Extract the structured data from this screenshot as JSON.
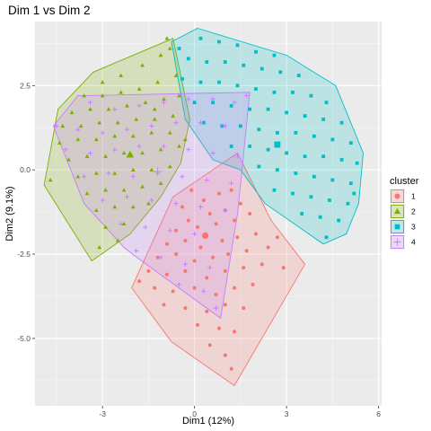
{
  "chart_data": {
    "type": "scatter",
    "title": "Dim 1 vs Dim 2",
    "xlabel": "Dim1 (12%)",
    "ylabel": "Dim2 (9.1%)",
    "xlim": [
      -5.2,
      6.1
    ],
    "ylim": [
      -7.0,
      4.4
    ],
    "xticks": [
      -3,
      0,
      3,
      6
    ],
    "xtick_labels": [
      "-3",
      "0",
      "3",
      "6"
    ],
    "yticks": [
      2.5,
      0,
      -2.5,
      -5
    ],
    "ytick_labels": [
      "2.5",
      "0.0",
      "-2.5",
      "-5.0"
    ],
    "grid": true,
    "legend_title": "cluster",
    "legend_position": "right",
    "series": [
      {
        "name": "1",
        "color": "#F8766D",
        "marker": "circle",
        "centroid": [
          0.35,
          -1.95
        ],
        "hull": [
          [
            -0.7,
            -0.8
          ],
          [
            1.4,
            0.5
          ],
          [
            2.5,
            -1.5
          ],
          [
            3.6,
            -2.8
          ],
          [
            1.3,
            -6.4
          ],
          [
            -0.75,
            -5.1
          ],
          [
            -2.05,
            -3.5
          ]
        ],
        "points": [
          [
            -0.4,
            -1.1
          ],
          [
            0.3,
            -0.9
          ],
          [
            0.8,
            -0.7
          ],
          [
            1.2,
            -0.6
          ],
          [
            -0.2,
            -1.5
          ],
          [
            0.5,
            -1.3
          ],
          [
            1.0,
            -1.2
          ],
          [
            1.5,
            -1.0
          ],
          [
            -0.6,
            -1.8
          ],
          [
            0.1,
            -1.7
          ],
          [
            0.7,
            -1.6
          ],
          [
            1.3,
            -1.5
          ],
          [
            1.8,
            -1.3
          ],
          [
            -0.9,
            -2.2
          ],
          [
            -0.3,
            -2.1
          ],
          [
            0.2,
            -2.3
          ],
          [
            0.9,
            -2.1
          ],
          [
            1.4,
            -2.0
          ],
          [
            2.0,
            -1.9
          ],
          [
            -1.2,
            -2.6
          ],
          [
            -0.6,
            -2.5
          ],
          [
            0.0,
            -2.7
          ],
          [
            0.6,
            -2.6
          ],
          [
            1.1,
            -2.5
          ],
          [
            1.7,
            -2.4
          ],
          [
            2.4,
            -2.3
          ],
          [
            -1.5,
            -3.0
          ],
          [
            -0.9,
            -3.1
          ],
          [
            -0.3,
            -3.0
          ],
          [
            0.4,
            -3.2
          ],
          [
            1.0,
            -3.0
          ],
          [
            1.6,
            -2.9
          ],
          [
            2.2,
            -2.8
          ],
          [
            2.9,
            -2.9
          ],
          [
            -1.3,
            -3.5
          ],
          [
            -0.7,
            -3.6
          ],
          [
            0.0,
            -3.5
          ],
          [
            0.7,
            -3.7
          ],
          [
            1.3,
            -3.5
          ],
          [
            1.9,
            -3.4
          ],
          [
            -1.0,
            -4.0
          ],
          [
            -0.3,
            -4.1
          ],
          [
            0.4,
            -4.2
          ],
          [
            1.0,
            -4.0
          ],
          [
            1.6,
            -4.1
          ],
          [
            0.1,
            -4.6
          ],
          [
            0.8,
            -4.7
          ],
          [
            1.3,
            -4.8
          ],
          [
            0.5,
            -5.2
          ],
          [
            1.0,
            -5.5
          ],
          [
            -1.8,
            -3.3
          ],
          [
            -0.1,
            -0.6
          ],
          [
            2.7,
            -2.0
          ],
          [
            1.2,
            -5.9
          ]
        ]
      },
      {
        "name": "2",
        "color": "#7CAE00",
        "marker": "triangle",
        "centroid": [
          -2.1,
          0.45
        ],
        "hull": [
          [
            -3.3,
            2.9
          ],
          [
            -0.7,
            3.9
          ],
          [
            -0.15,
            1.5
          ],
          [
            -0.45,
            0.2
          ],
          [
            -1.1,
            -0.8
          ],
          [
            -2.1,
            -1.9
          ],
          [
            -3.35,
            -2.7
          ],
          [
            -4.9,
            -0.45
          ],
          [
            -4.45,
            1.8
          ]
        ],
        "points": [
          [
            -3.0,
            2.6
          ],
          [
            -2.4,
            2.8
          ],
          [
            -1.7,
            3.1
          ],
          [
            -1.1,
            3.4
          ],
          [
            -0.8,
            3.6
          ],
          [
            -3.6,
            2.2
          ],
          [
            -3.0,
            2.2
          ],
          [
            -2.4,
            2.3
          ],
          [
            -1.8,
            2.4
          ],
          [
            -1.2,
            2.6
          ],
          [
            -0.6,
            2.8
          ],
          [
            -4.0,
            1.7
          ],
          [
            -3.4,
            1.8
          ],
          [
            -2.8,
            1.8
          ],
          [
            -2.2,
            1.9
          ],
          [
            -1.6,
            2.0
          ],
          [
            -1.0,
            2.1
          ],
          [
            -0.5,
            2.2
          ],
          [
            -4.3,
            1.3
          ],
          [
            -3.7,
            1.3
          ],
          [
            -3.1,
            1.4
          ],
          [
            -2.5,
            1.4
          ],
          [
            -1.9,
            1.5
          ],
          [
            -1.3,
            1.5
          ],
          [
            -0.7,
            1.6
          ],
          [
            -4.4,
            0.8
          ],
          [
            -3.8,
            0.9
          ],
          [
            -3.2,
            0.9
          ],
          [
            -2.6,
            1.0
          ],
          [
            -2.0,
            1.0
          ],
          [
            -1.4,
            1.1
          ],
          [
            -0.8,
            1.1
          ],
          [
            -4.1,
            0.3
          ],
          [
            -3.5,
            0.4
          ],
          [
            -2.9,
            0.4
          ],
          [
            -2.3,
            0.5
          ],
          [
            -1.7,
            0.5
          ],
          [
            -1.1,
            0.6
          ],
          [
            -0.5,
            0.7
          ],
          [
            -3.8,
            -0.2
          ],
          [
            -3.2,
            -0.1
          ],
          [
            -2.6,
            -0.1
          ],
          [
            -2.0,
            0.0
          ],
          [
            -1.4,
            0.0
          ],
          [
            -0.8,
            0.1
          ],
          [
            -3.5,
            -0.7
          ],
          [
            -2.9,
            -0.6
          ],
          [
            -2.3,
            -0.6
          ],
          [
            -1.7,
            -0.5
          ],
          [
            -1.1,
            -0.4
          ],
          [
            -3.2,
            -1.2
          ],
          [
            -2.6,
            -1.1
          ],
          [
            -2.0,
            -1.1
          ],
          [
            -1.5,
            -1.0
          ],
          [
            -2.9,
            -1.7
          ],
          [
            -2.3,
            -1.6
          ],
          [
            -3.1,
            -2.3
          ],
          [
            -2.5,
            -2.1
          ],
          [
            -1.3,
            1.8
          ],
          [
            -0.3,
            0.9
          ],
          [
            -4.7,
            -0.3
          ],
          [
            -0.9,
            3.9
          ]
        ]
      },
      {
        "name": "3",
        "color": "#00BFC4",
        "marker": "square",
        "centroid": [
          2.7,
          0.75
        ],
        "hull": [
          [
            0.1,
            4.2
          ],
          [
            3.0,
            3.4
          ],
          [
            4.6,
            2.5
          ],
          [
            5.5,
            0.5
          ],
          [
            5.35,
            -1.0
          ],
          [
            4.95,
            -1.9
          ],
          [
            4.2,
            -2.2
          ],
          [
            2.3,
            -1.0
          ],
          [
            1.5,
            0.0
          ],
          [
            0.6,
            0.3
          ],
          [
            -0.3,
            1.5
          ],
          [
            -0.75,
            3.8
          ]
        ],
        "points": [
          [
            0.2,
            3.9
          ],
          [
            0.8,
            3.8
          ],
          [
            1.4,
            3.7
          ],
          [
            2.0,
            3.5
          ],
          [
            2.6,
            3.4
          ],
          [
            -0.2,
            3.3
          ],
          [
            0.4,
            3.2
          ],
          [
            1.0,
            3.2
          ],
          [
            1.6,
            3.1
          ],
          [
            2.2,
            3.0
          ],
          [
            2.8,
            2.9
          ],
          [
            3.4,
            2.8
          ],
          [
            -0.4,
            2.7
          ],
          [
            0.2,
            2.6
          ],
          [
            0.8,
            2.6
          ],
          [
            1.4,
            2.5
          ],
          [
            2.0,
            2.4
          ],
          [
            2.6,
            2.3
          ],
          [
            3.2,
            2.3
          ],
          [
            3.8,
            2.2
          ],
          [
            4.3,
            2.0
          ],
          [
            0.0,
            2.0
          ],
          [
            0.6,
            2.0
          ],
          [
            1.2,
            1.9
          ],
          [
            1.8,
            1.8
          ],
          [
            2.4,
            1.8
          ],
          [
            3.0,
            1.7
          ],
          [
            3.6,
            1.6
          ],
          [
            4.2,
            1.5
          ],
          [
            4.8,
            1.4
          ],
          [
            0.3,
            1.4
          ],
          [
            0.9,
            1.3
          ],
          [
            1.5,
            1.3
          ],
          [
            2.1,
            1.2
          ],
          [
            2.7,
            1.1
          ],
          [
            3.3,
            1.1
          ],
          [
            3.9,
            1.0
          ],
          [
            4.5,
            0.9
          ],
          [
            5.1,
            0.8
          ],
          [
            1.2,
            0.7
          ],
          [
            1.8,
            0.7
          ],
          [
            2.4,
            0.6
          ],
          [
            3.0,
            0.5
          ],
          [
            3.6,
            0.4
          ],
          [
            4.2,
            0.4
          ],
          [
            4.8,
            0.3
          ],
          [
            5.3,
            0.2
          ],
          [
            2.1,
            0.1
          ],
          [
            2.7,
            0.0
          ],
          [
            3.3,
            -0.1
          ],
          [
            3.9,
            -0.2
          ],
          [
            4.5,
            -0.3
          ],
          [
            5.1,
            -0.4
          ],
          [
            2.6,
            -0.6
          ],
          [
            3.2,
            -0.7
          ],
          [
            3.8,
            -0.8
          ],
          [
            4.4,
            -0.9
          ],
          [
            5.0,
            -1.0
          ],
          [
            3.5,
            -1.3
          ],
          [
            4.1,
            -1.4
          ],
          [
            4.7,
            -1.5
          ],
          [
            4.3,
            -2.0
          ],
          [
            -0.5,
            3.6
          ],
          [
            5.2,
            -0.7
          ]
        ]
      },
      {
        "name": "4",
        "color": "#C77CFF",
        "marker": "plus",
        "centroid": [
          -1.2,
          -0.05
        ],
        "hull": [
          [
            -3.8,
            2.2
          ],
          [
            1.8,
            2.3
          ],
          [
            1.55,
            0.0
          ],
          [
            1.4,
            -1.3
          ],
          [
            0.85,
            -4.4
          ],
          [
            -1.95,
            -2.55
          ],
          [
            -2.3,
            -2.3
          ],
          [
            -3.6,
            -1.0
          ],
          [
            -4.6,
            1.3
          ]
        ],
        "points": [
          [
            -3.4,
            2.0
          ],
          [
            -2.6,
            1.8
          ],
          [
            -1.8,
            1.9
          ],
          [
            -1.0,
            2.0
          ],
          [
            -0.2,
            2.1
          ],
          [
            0.6,
            2.1
          ],
          [
            1.3,
            2.0
          ],
          [
            -3.8,
            1.2
          ],
          [
            -3.0,
            1.1
          ],
          [
            -2.2,
            1.2
          ],
          [
            -1.4,
            1.3
          ],
          [
            -0.6,
            1.4
          ],
          [
            0.2,
            1.4
          ],
          [
            1.0,
            1.3
          ],
          [
            -4.2,
            0.6
          ],
          [
            -3.4,
            0.5
          ],
          [
            -2.6,
            0.6
          ],
          [
            -1.8,
            0.7
          ],
          [
            -1.0,
            0.7
          ],
          [
            -0.2,
            0.6
          ],
          [
            0.6,
            0.5
          ],
          [
            1.4,
            0.4
          ],
          [
            -3.6,
            -0.2
          ],
          [
            -2.8,
            -0.1
          ],
          [
            -2.0,
            -0.2
          ],
          [
            -1.2,
            -0.1
          ],
          [
            -0.4,
            -0.2
          ],
          [
            0.4,
            -0.3
          ],
          [
            1.2,
            -0.4
          ],
          [
            -3.0,
            -0.9
          ],
          [
            -2.2,
            -0.8
          ],
          [
            -1.4,
            -0.9
          ],
          [
            -0.6,
            -1.0
          ],
          [
            0.2,
            -1.1
          ],
          [
            1.0,
            -1.2
          ],
          [
            -2.4,
            -1.6
          ],
          [
            -1.6,
            -1.7
          ],
          [
            -0.8,
            -1.8
          ],
          [
            0.0,
            -1.9
          ],
          [
            -1.9,
            -2.4
          ],
          [
            -1.1,
            -2.6
          ],
          [
            -0.3,
            -2.8
          ],
          [
            0.5,
            -2.9
          ],
          [
            -0.5,
            -3.4
          ],
          [
            0.3,
            -3.6
          ],
          [
            0.7,
            -4.1
          ],
          [
            -4.5,
            1.3
          ],
          [
            1.7,
            2.2
          ]
        ]
      }
    ]
  }
}
